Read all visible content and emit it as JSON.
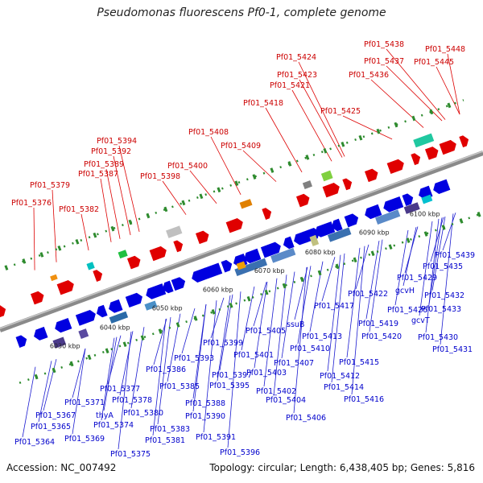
{
  "title": "Pseudomonas fluorescens Pf0-1, complete genome",
  "footer": {
    "accession": "Accession: NC_007492",
    "summary": "Topology: circular; Length: 6,438,405 bp; Genes: 5,816"
  },
  "colors": {
    "top_labels": "#cc0000",
    "bottom_labels": "#0000cc",
    "backbone": "#8a8a8a"
  },
  "kbp_ticks": [
    "6030 kbp",
    "6040 kbp",
    "6050 kbp",
    "6060 kbp",
    "6070 kbp",
    "6080 kbp",
    "6090 kbp",
    "6100 kbp"
  ],
  "top_labels": [
    "Pf01_5376",
    "Pf01_5379",
    "Pf01_5382",
    "Pf01_5387",
    "Pf01_5389",
    "Pf01_5392",
    "Pf01_5394",
    "Pf01_5398",
    "Pf01_5400",
    "Pf01_5408",
    "Pf01_5409",
    "Pf01_5418",
    "Pf01_5421",
    "Pf01_5423",
    "Pf01_5424",
    "Pf01_5425",
    "Pf01_5436",
    "Pf01_5437",
    "Pf01_5438",
    "Pf01_5445",
    "Pf01_5448"
  ],
  "bottom_labels": [
    "Pf01_5364",
    "Pf01_5365",
    "Pf01_5367",
    "Pf01_5369",
    "Pf01_5371",
    "thyA",
    "Pf01_5374",
    "Pf01_5375",
    "Pf01_5377",
    "Pf01_5378",
    "Pf01_5380",
    "Pf01_5381",
    "Pf01_5383",
    "Pf01_5385",
    "Pf01_5386",
    "Pf01_5388",
    "Pf01_5390",
    "Pf01_5391",
    "Pf01_5393",
    "Pf01_5395",
    "Pf01_5396",
    "Pf01_5397",
    "Pf01_5399",
    "Pf01_5401",
    "Pf01_5402",
    "Pf01_5403",
    "Pf01_5404",
    "Pf01_5405",
    "Pf01_5406",
    "Pf01_5407",
    "ssuB",
    "Pf01_5410",
    "Pf01_5412",
    "Pf01_5413",
    "Pf01_5414",
    "Pf01_5415",
    "Pf01_5416",
    "Pf01_5417",
    "Pf01_5419",
    "Pf01_5420",
    "Pf01_5422",
    "Pf01_5426",
    "gcvH",
    "Pf01_5429",
    "gcvT",
    "Pf01_5430",
    "Pf01_5431",
    "Pf01_5432",
    "Pf01_5433",
    "Pf01_5435",
    "Pf01_5439"
  ]
}
